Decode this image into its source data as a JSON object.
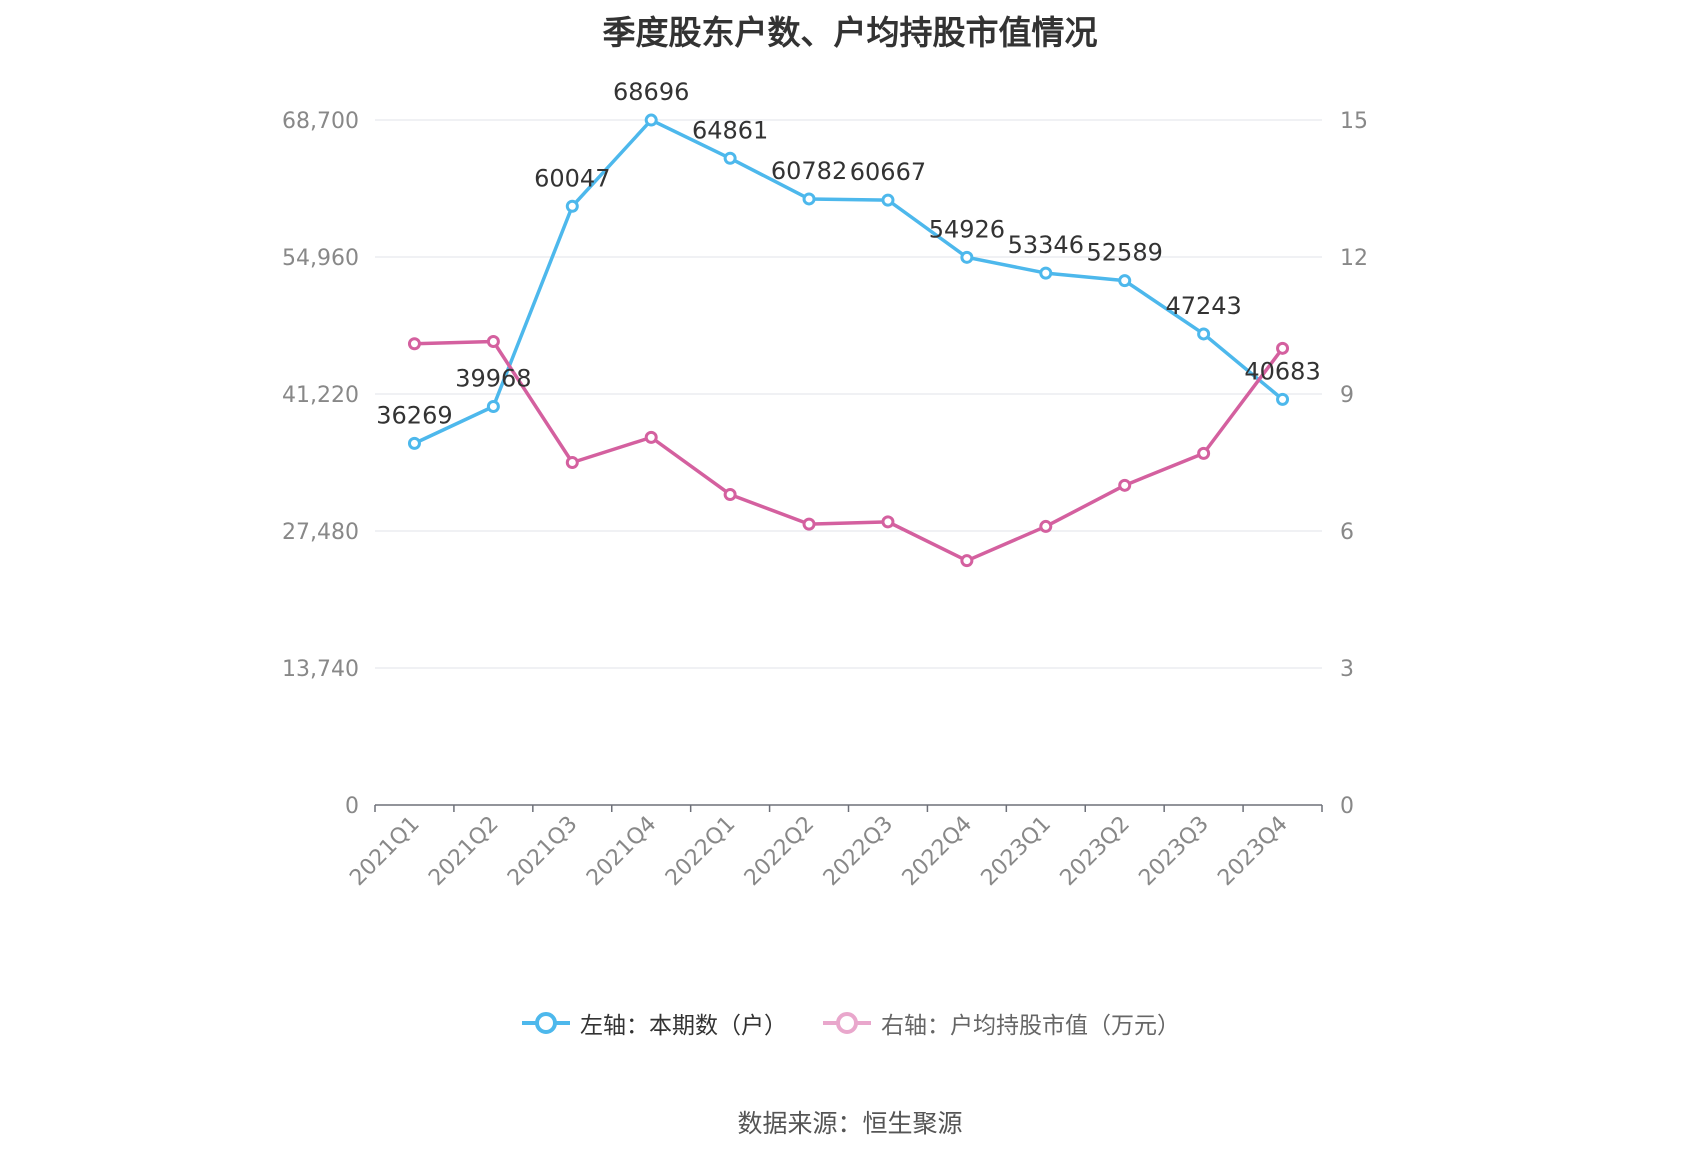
{
  "chart_data": {
    "type": "line",
    "title": "季度股东户数、户均持股市值情况",
    "categories": [
      "2021Q1",
      "2021Q2",
      "2021Q3",
      "2021Q4",
      "2022Q1",
      "2022Q2",
      "2022Q3",
      "2022Q4",
      "2023Q1",
      "2023Q2",
      "2023Q3",
      "2023Q4"
    ],
    "series": [
      {
        "name": "左轴：本期数（户）",
        "axis": "left",
        "color": "#4db8ec",
        "values": [
          36269,
          39968,
          60047,
          68696,
          64861,
          60782,
          60667,
          54926,
          53346,
          52589,
          47243,
          40683
        ],
        "labels": [
          "36269",
          "39968",
          "60047",
          "68696",
          "64861",
          "60782",
          "60667",
          "54926",
          "53346",
          "52589",
          "47243",
          "40683"
        ]
      },
      {
        "name": "右轴：户均持股市值（万元）",
        "axis": "right",
        "color": "#d4609f",
        "values": [
          10.1,
          10.15,
          7.5,
          8.05,
          6.8,
          6.15,
          6.2,
          5.35,
          6.1,
          7.0,
          7.7,
          10.0
        ]
      }
    ],
    "y_left": {
      "ylim": [
        0,
        68700
      ],
      "ticks": [
        0,
        13740,
        27480,
        41220,
        54960,
        68700
      ],
      "tick_labels": [
        "0",
        "13,740",
        "27,480",
        "41,220",
        "54,960",
        "68,700"
      ]
    },
    "y_right": {
      "ylim": [
        0,
        15
      ],
      "ticks": [
        0,
        3,
        6,
        9,
        12,
        15
      ],
      "tick_labels": [
        "0",
        "3",
        "6",
        "9",
        "12",
        "15"
      ]
    },
    "grid": true,
    "legend_position": "bottom"
  },
  "source": "数据来源：恒生聚源"
}
